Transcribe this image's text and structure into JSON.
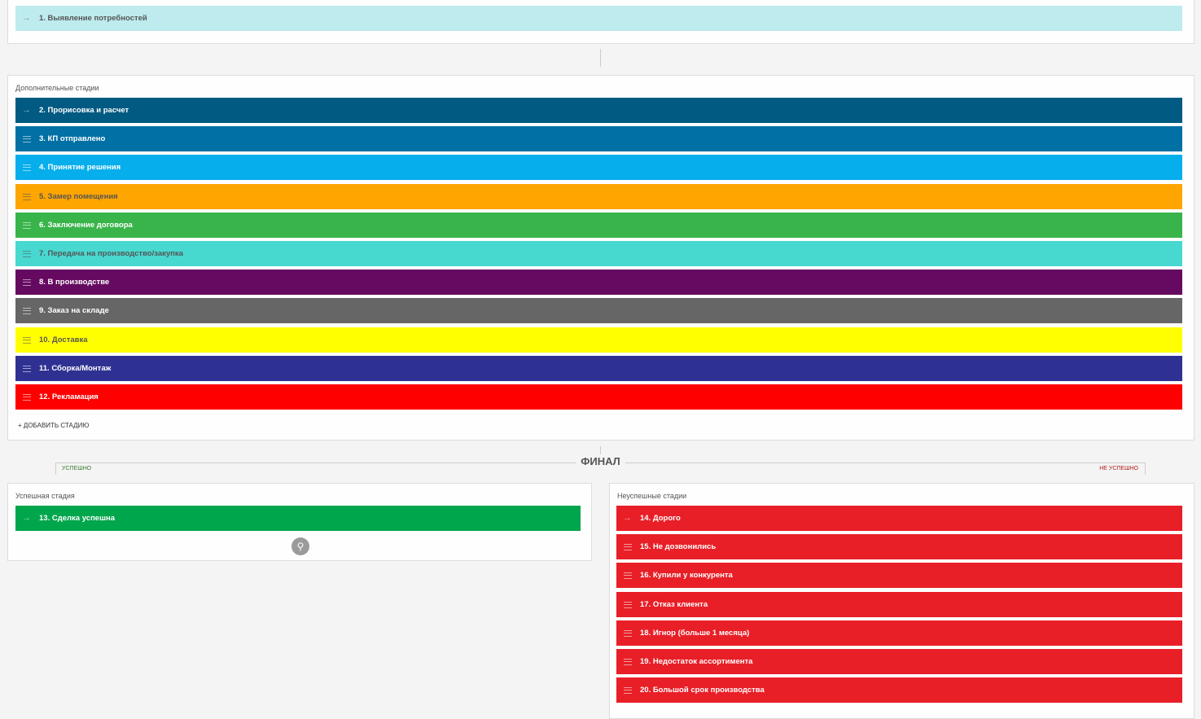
{
  "primary": {
    "stages": [
      {
        "label": "1. Выявление потребностей",
        "color": "#bdebee"
      }
    ]
  },
  "additional": {
    "title": "Дополнительные стадии",
    "add_button": "+ ДОБАВИТЬ СТАДИЮ",
    "stages": [
      {
        "label": "2. Прорисовка и расчет",
        "color": "#015a82"
      },
      {
        "label": "3. КП отправлено",
        "color": "#0170a4"
      },
      {
        "label": "4. Принятие решения",
        "color": "#07aeec"
      },
      {
        "label": "5. Замер помещения",
        "color": "#fea500"
      },
      {
        "label": "6. Заключение договора",
        "color": "#39b44a"
      },
      {
        "label": "7. Передача на производство/закупка",
        "color": "#47d8d0"
      },
      {
        "label": "8. В производстве",
        "color": "#650a60"
      },
      {
        "label": "9. Заказ на складе",
        "color": "#666666"
      },
      {
        "label": "10. Доставка",
        "color": "#ffff00"
      },
      {
        "label": "11. Сборка/Монтаж",
        "color": "#2f3192"
      },
      {
        "label": "12. Рекламация",
        "color": "#fe0000"
      }
    ]
  },
  "final": {
    "title": "ФИНАЛ",
    "success_tab": "УСПЕШНО",
    "failure_tab": "НЕ УСПЕШНО",
    "success": {
      "title": "Успешная стадия",
      "stages": [
        {
          "label": "13. Сделка успешна",
          "color": "#00a64c"
        }
      ]
    },
    "failure": {
      "title": "Неуспешные стадии",
      "stages": [
        {
          "label": "14. Дорого",
          "color": "#e81f27"
        },
        {
          "label": "15. Не дозвонились",
          "color": "#e81f27"
        },
        {
          "label": "16. Купили у конкурента",
          "color": "#e81f27"
        },
        {
          "label": "17. Отказ клиента",
          "color": "#e81f27"
        },
        {
          "label": "18. Игнор (больше 1 месяца)",
          "color": "#e81f27"
        },
        {
          "label": "19. Недостаток ассортимента",
          "color": "#e81f27"
        },
        {
          "label": "20. Большой срок производства",
          "color": "#e81f27"
        }
      ]
    }
  }
}
